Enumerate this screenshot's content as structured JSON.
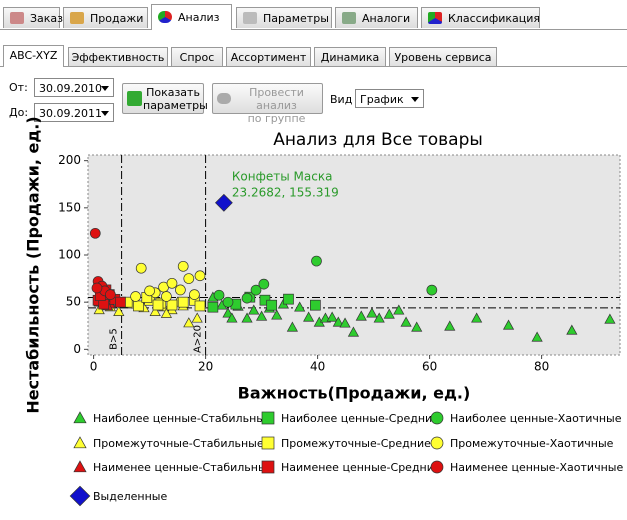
{
  "tabs": [
    "Заказ",
    "Продажи",
    "Анализ",
    "Параметры",
    "Аналоги",
    "Классификация"
  ],
  "subtabs": [
    "ABC-XYZ",
    "Эффективность",
    "Спрос",
    "Ассортимент",
    "Динамика",
    "Уровень сервиса"
  ],
  "controls": {
    "from_label": "От:",
    "from_value": "30.09.2010",
    "to_label": "До:",
    "to_value": "30.09.2011",
    "show_button": [
      "Показать",
      "параметры"
    ],
    "group_button": [
      "Провести анализ",
      "по группе"
    ],
    "view_label": "Вид",
    "view_value": "График"
  },
  "chart_data": {
    "type": "scatter",
    "title": "Анализ для Все товары",
    "x_label": "Важность(Продажи, ед.)",
    "y_label": "Нестабильность (Продажи, ед.)",
    "xlim": [
      -1,
      94
    ],
    "xticks": [
      0,
      20,
      40,
      60,
      80
    ],
    "ylim": [
      -6,
      206
    ],
    "yticks": [
      0,
      50,
      100,
      150,
      200
    ],
    "vlines": [
      {
        "value": 5,
        "label": "B>5"
      },
      {
        "value": 20,
        "label": "A>20"
      }
    ],
    "hlines": [
      55,
      44
    ],
    "annotation": [
      "Конфеты Маска",
      "23.2682, 155.319"
    ],
    "series": [
      {
        "name": "Наиболее ценные-Стабильные",
        "marker": "triangle",
        "color": "#2ecc2e",
        "x": [
          21.3,
          22.9,
          24.0,
          24.7,
          25.8,
          27.4,
          28.6,
          30.0,
          31.4,
          32.7,
          33.9,
          35.5,
          36.8,
          38.4,
          40.3,
          41.4,
          42.6,
          43.7,
          44.9,
          46.4,
          47.8,
          49.7,
          51.0,
          52.8,
          54.5,
          55.8,
          57.7,
          63.6,
          68.4,
          74.1,
          79.2,
          85.4,
          92.2
        ],
        "y": [
          55.3,
          46.8,
          38.3,
          33.0,
          45.7,
          33.0,
          41.5,
          35.0,
          43.6,
          36.2,
          47.9,
          23.4,
          44.7,
          34.0,
          28.7,
          33.0,
          34.0,
          28.7,
          27.7,
          18.1,
          35.1,
          38.3,
          33.0,
          37.2,
          41.5,
          28.7,
          23.4,
          24.5,
          33.0,
          25.5,
          12.8,
          20.2,
          31.9
        ]
      },
      {
        "name": "Наиболее ценные-Средние",
        "marker": "square",
        "color": "#2ecc2e",
        "x": [
          21.3,
          25.4,
          27.9,
          30.6,
          31.8,
          34.8,
          39.6
        ],
        "y": [
          44.7,
          47.9,
          55.3,
          52.1,
          46.8,
          53.2,
          46.8
        ]
      },
      {
        "name": "Наиболее ценные-Хаотичные",
        "marker": "circle",
        "color": "#2ecc2e",
        "x": [
          22.4,
          27.4,
          29.0,
          30.4,
          39.8,
          60.4,
          24.0
        ],
        "y": [
          57.4,
          54.3,
          62.8,
          69.1,
          93.6,
          62.8,
          50.0
        ]
      },
      {
        "name": "Промежуточные-Стабильные",
        "marker": "triangle",
        "color": "#ffff33",
        "x": [
          1,
          3,
          4.5,
          7,
          9,
          11,
          12.5,
          14,
          16,
          17,
          18.5,
          13,
          15
        ],
        "y": [
          42,
          45,
          40,
          48,
          44,
          40,
          45,
          42,
          46,
          28,
          33,
          38,
          50
        ]
      },
      {
        "name": "Промежуточные-Средние",
        "marker": "square",
        "color": "#ffff33",
        "x": [
          6,
          8,
          10,
          12,
          14,
          16,
          18,
          9.5,
          11.5,
          19
        ],
        "y": [
          50,
          46,
          52,
          49,
          47,
          50,
          52,
          55,
          47,
          46
        ]
      },
      {
        "name": "Промежуточные-Хаотичные",
        "marker": "circle",
        "color": "#ffff33",
        "x": [
          8.5,
          16,
          11,
          12.5,
          14,
          17,
          19,
          7.5,
          10,
          15.5,
          18,
          13
        ],
        "y": [
          86,
          88,
          60,
          66,
          70,
          75,
          78,
          56,
          62,
          63,
          58,
          56
        ]
      },
      {
        "name": "Наименее ценные-Стабильные",
        "marker": "triangle",
        "color": "#dd1111",
        "x": [
          1,
          2,
          3,
          4,
          1.5,
          3.5,
          2.5,
          4.5
        ],
        "y": [
          50,
          55,
          48,
          52,
          60,
          57,
          46,
          49
        ]
      },
      {
        "name": "Наименее ценные-Средние",
        "marker": "square",
        "color": "#dd1111",
        "x": [
          0.8,
          1.8,
          2.8,
          3.8,
          4.8,
          2.2,
          1.2
        ],
        "y": [
          52,
          48,
          58,
          53,
          50,
          63,
          57
        ]
      },
      {
        "name": "Наименее ценные-Хаотичные",
        "marker": "circle",
        "color": "#dd1111",
        "x": [
          0.3,
          0.8,
          1.5,
          2,
          0.6,
          3
        ],
        "y": [
          123,
          72,
          67,
          62,
          65,
          58
        ]
      },
      {
        "name": "Выделенные",
        "marker": "diamond",
        "color": "#1111cc",
        "x": [
          23.2682
        ],
        "y": [
          155.319
        ]
      }
    ]
  }
}
